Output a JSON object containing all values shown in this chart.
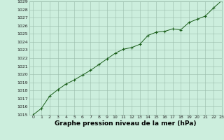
{
  "x": [
    0,
    1,
    2,
    3,
    4,
    5,
    6,
    7,
    8,
    9,
    10,
    11,
    12,
    13,
    14,
    15,
    16,
    17,
    18,
    19,
    20,
    21,
    22,
    23
  ],
  "y": [
    1015.0,
    1015.8,
    1017.3,
    1018.1,
    1018.8,
    1019.3,
    1019.9,
    1020.5,
    1021.2,
    1021.9,
    1022.6,
    1023.1,
    1023.3,
    1023.7,
    1024.8,
    1025.2,
    1025.3,
    1025.6,
    1025.5,
    1026.4,
    1026.8,
    1027.2,
    1028.2,
    1029.1
  ],
  "ylim": [
    1015,
    1029
  ],
  "xlim": [
    -0.5,
    23
  ],
  "yticks": [
    1015,
    1016,
    1017,
    1018,
    1019,
    1020,
    1021,
    1022,
    1023,
    1024,
    1025,
    1026,
    1027,
    1028,
    1029
  ],
  "xticks": [
    0,
    1,
    2,
    3,
    4,
    5,
    6,
    7,
    8,
    9,
    10,
    11,
    12,
    13,
    14,
    15,
    16,
    17,
    18,
    19,
    20,
    21,
    22,
    23
  ],
  "xlabel": "Graphe pression niveau de la mer (hPa)",
  "line_color": "#1a5e1a",
  "marker_color": "#1a5e1a",
  "bg_color": "#cceedd",
  "grid_color": "#99bbaa",
  "tick_fontsize": 4.5,
  "xlabel_fontsize": 6.5,
  "xlabel_bold": true
}
